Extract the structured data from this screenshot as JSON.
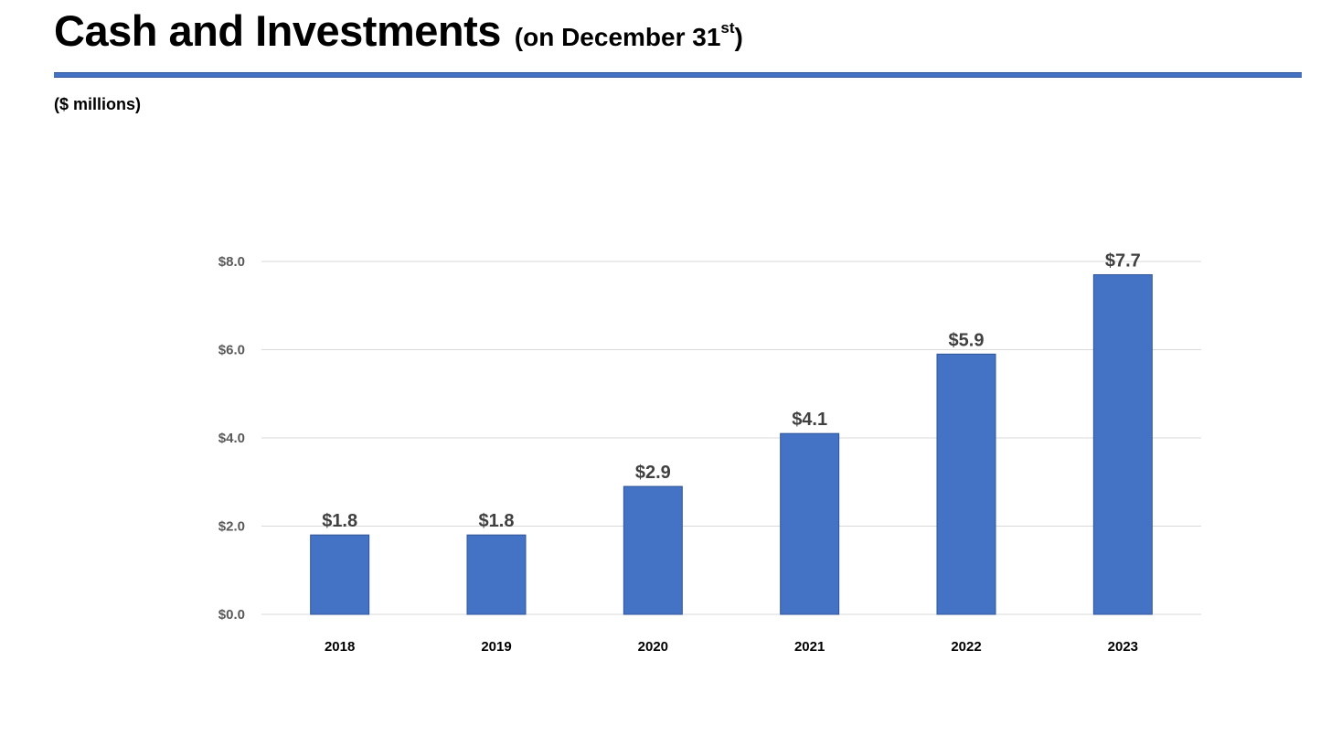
{
  "slide": {
    "title": "Cash and Investments",
    "subtitle_prefix": "(on December 31",
    "subtitle_sup": "st",
    "subtitle_suffix": ")",
    "units": "($ millions)"
  },
  "colors": {
    "bar": "#4472C4",
    "bar_stroke": "#2F5597",
    "rule": "#4472C4",
    "gridline": "#D9D9D9"
  },
  "chart_data": {
    "type": "bar",
    "title": "",
    "xlabel": "",
    "ylabel": "",
    "categories": [
      "2018",
      "2019",
      "2020",
      "2021",
      "2022",
      "2023"
    ],
    "values": [
      1.8,
      1.8,
      2.9,
      4.1,
      5.9,
      7.7
    ],
    "data_labels": [
      "$1.8",
      "$1.8",
      "$2.9",
      "$4.1",
      "$5.9",
      "$7.7"
    ],
    "yticks": [
      0,
      2,
      4,
      6,
      8
    ],
    "ytick_labels": [
      "$0.0",
      "$2.0",
      "$4.0",
      "$6.0",
      "$8.0"
    ],
    "ylim": [
      0,
      8
    ],
    "grid": true,
    "legend": "none"
  }
}
